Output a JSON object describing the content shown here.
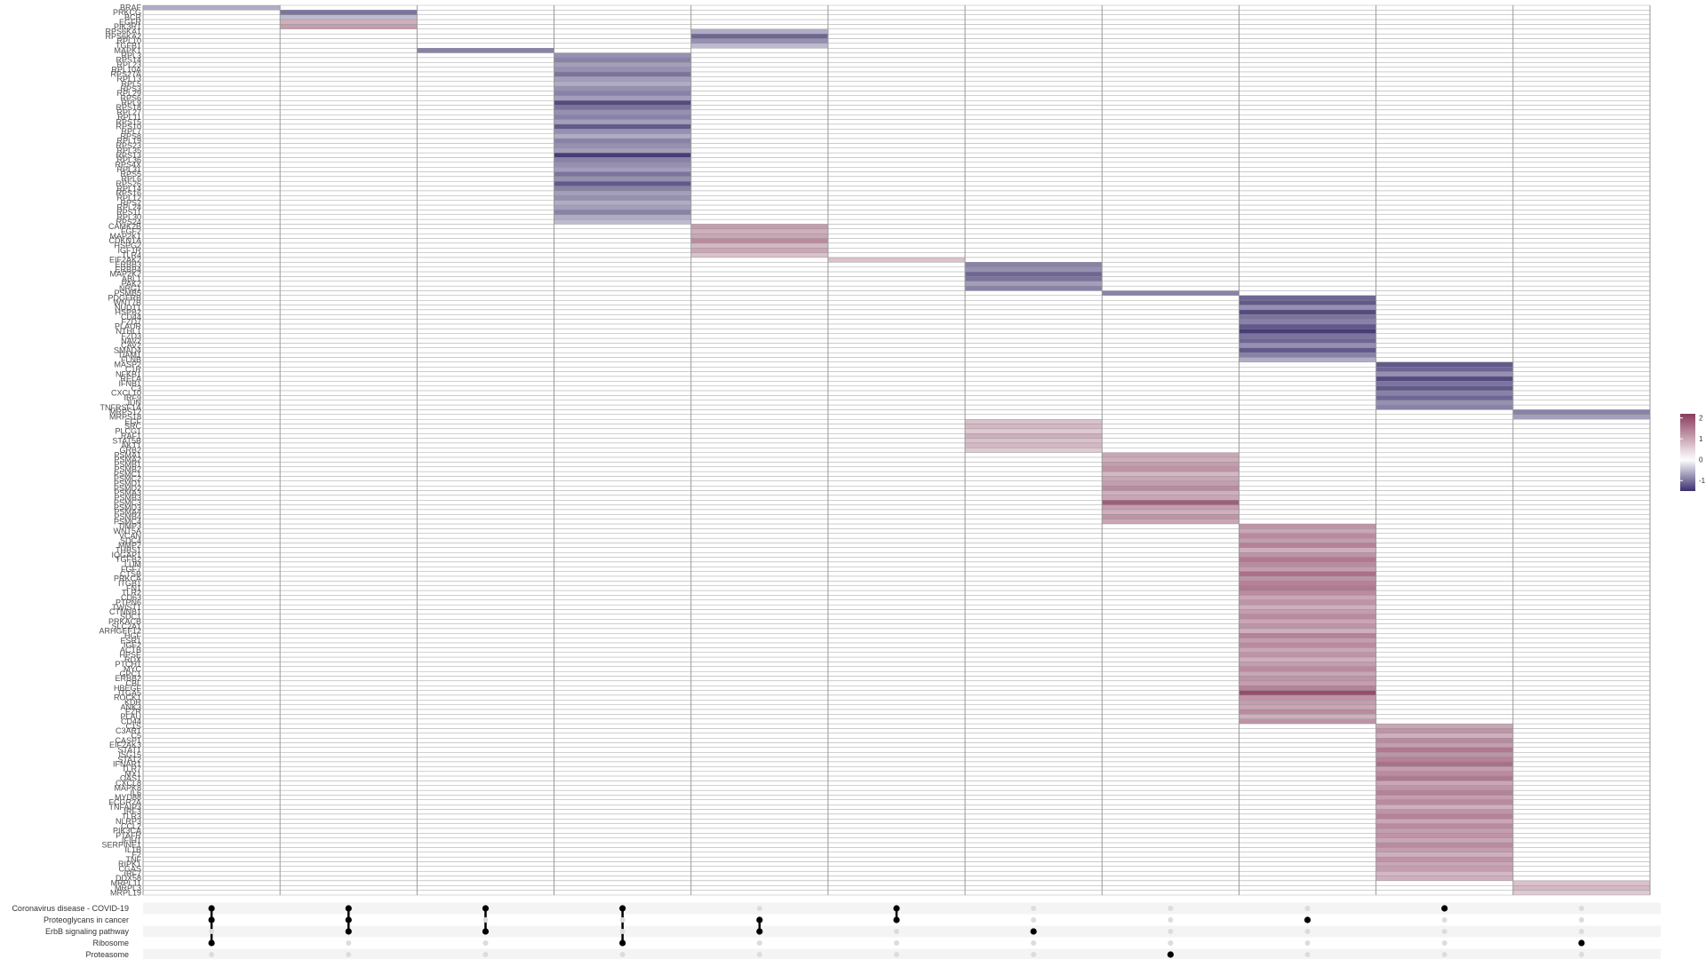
{
  "chart_data": {
    "type": "heatmap",
    "title": "",
    "xlabel": "",
    "ylabel": "",
    "value_range": [
      -1.5,
      2.2
    ],
    "colors": {
      "low": "#3b2f6e",
      "mid": "#ffffff",
      "high": "#8a3b5c",
      "grid": "#9a9a9a",
      "panel_bg": "#f4f4f4"
    },
    "legend": {
      "position": "right",
      "ticks": [
        2,
        1,
        0,
        -1
      ]
    },
    "columns": 11,
    "sets": [
      "Coronavirus disease - COVID-19",
      "Proteoglycans in cancer",
      "ErbB signaling pathway",
      "Ribosome",
      "Proteasome"
    ],
    "upset_matrix": [
      [
        0,
        1,
        3
      ],
      [
        0,
        1,
        2
      ],
      [
        0,
        2
      ],
      [
        0,
        3
      ],
      [
        1,
        2
      ],
      [
        0,
        1
      ],
      [
        2
      ],
      [
        4
      ],
      [
        1
      ],
      [
        0
      ],
      [
        3
      ]
    ],
    "blocks": [
      {
        "column": 0,
        "genes": [
          "BRAF"
        ],
        "values": [
          -0.6
        ]
      },
      {
        "column": 1,
        "genes": [
          "PRKCG",
          "BCR",
          "EGFR",
          "PIK3R1"
        ],
        "values": [
          -1.0,
          -0.5,
          0.9,
          1.1
        ]
      },
      {
        "column": 4,
        "genes": [
          "RPS6KA1",
          "RPS6KA2",
          "RPL10",
          "TGFB1"
        ],
        "values": [
          -0.6,
          -1.1,
          -0.8,
          -0.5
        ]
      },
      {
        "column": 2,
        "genes": [
          "MAPK1"
        ],
        "values": [
          -0.9
        ]
      },
      {
        "column": 3,
        "genes": [
          "RPL3",
          "RPS14",
          "RPL23",
          "RPL10A",
          "RPS27A",
          "RPL13",
          "RPL5",
          "RPS3",
          "RPL29",
          "RPS6",
          "RPL9",
          "RPS18",
          "RPL27",
          "RPL11",
          "RPS15",
          "RPS10",
          "RPL7",
          "RPS8",
          "RPL19",
          "RPS23",
          "RPL35",
          "RPS13",
          "RPL36",
          "RPS4X",
          "RPL31",
          "RPS5",
          "RPL6",
          "RPS26",
          "RPL14",
          "RPS16",
          "RPL12",
          "RPS2",
          "RPL24",
          "RPS11",
          "RPL30",
          "RPS24"
        ],
        "values": [
          -0.8,
          -0.9,
          -0.7,
          -0.8,
          -1.0,
          -0.7,
          -0.6,
          -0.8,
          -0.9,
          -0.7,
          -1.3,
          -1.0,
          -0.8,
          -0.9,
          -0.7,
          -1.2,
          -0.8,
          -0.6,
          -0.9,
          -0.8,
          -0.7,
          -1.4,
          -0.9,
          -0.8,
          -0.7,
          -1.0,
          -0.8,
          -1.2,
          -0.9,
          -0.7,
          -0.8,
          -0.6,
          -0.7,
          -0.9,
          -0.6,
          -0.5
        ]
      },
      {
        "column": 4,
        "genes": [
          "CAMK2B",
          "FGF2",
          "MAP2K1",
          "CDKN1A",
          "HSPG2",
          "IGF1R",
          "TLR4"
        ],
        "values": [
          1.1,
          0.9,
          1.0,
          1.3,
          0.8,
          1.0,
          0.7
        ]
      },
      {
        "column": 5,
        "genes": [
          "EIF2AK2"
        ],
        "values": [
          0.7
        ]
      },
      {
        "column": 6,
        "genes": [
          "ERBB3",
          "ERBB4",
          "MAP2K2",
          "ABL1",
          "PAK2",
          "NRG1"
        ],
        "values": [
          -0.9,
          -0.8,
          -1.1,
          -1.0,
          -0.7,
          -0.9
        ]
      },
      {
        "column": 7,
        "genes": [
          "PSMB5"
        ],
        "values": [
          -0.9
        ]
      },
      {
        "column": 8,
        "genes": [
          "PDGFRB",
          "WNT7B",
          "NUDT1",
          "HSPB2",
          "CD44",
          "FZD7",
          "PLAUR",
          "NTHL1",
          "FZD3",
          "NAV2",
          "CAV2",
          "SMAD4",
          "TIAM1",
          "FLNB"
        ],
        "values": [
          -1.1,
          -1.2,
          -0.8,
          -1.3,
          -1.0,
          -0.9,
          -1.2,
          -1.4,
          -1.0,
          -1.1,
          -0.8,
          -1.2,
          -0.9,
          -0.6
        ]
      },
      {
        "column": 9,
        "genes": [
          "MASP2",
          "C1R",
          "NFKB1",
          "RELA",
          "IFNB1",
          "C3",
          "CXCL10",
          "IRF9",
          "JUN",
          "TNFRSF1A"
        ],
        "values": [
          -1.2,
          -1.1,
          -0.8,
          -1.3,
          -1.0,
          -1.2,
          -0.9,
          -1.1,
          -0.8,
          -0.9
        ]
      },
      {
        "column": 10,
        "genes": [
          "MRPS12",
          "MRPS18"
        ],
        "values": [
          -0.9,
          -0.7
        ]
      },
      {
        "column": 6,
        "genes": [
          "EGF",
          "SRC",
          "PLCG1",
          "RAF1",
          "STAT5B",
          "AKT1",
          "GRB2"
        ],
        "values": [
          0.7,
          0.8,
          0.6,
          0.9,
          0.7,
          0.8,
          0.6
        ]
      },
      {
        "column": 7,
        "genes": [
          "PSMA1",
          "PSMA2",
          "PSMB1",
          "PSMB2",
          "PSMC1",
          "PSMC2",
          "PSMD1",
          "PSMD2",
          "PSMA3",
          "PSMB3",
          "PSMC3",
          "PSMD3",
          "PSMA4",
          "PSMB4",
          "PSMC4"
        ],
        "values": [
          1.0,
          0.9,
          1.1,
          1.2,
          0.8,
          1.0,
          1.1,
          1.3,
          0.9,
          1.0,
          1.8,
          1.1,
          0.9,
          1.2,
          1.0
        ]
      },
      {
        "column": 8,
        "genes": [
          "TIMP3",
          "WNT5A",
          "VCAN",
          "SDC4",
          "MMP2",
          "THBS1",
          "IQGAP1",
          "TGFB2",
          "LUM",
          "FGF7",
          "CTSB",
          "PRKCA",
          "ITGB1",
          "FN1",
          "TLR2",
          "CD63",
          "PTPN6",
          "TWIST1",
          "CTNNB1",
          "SDC1",
          "PRKACB",
          "SLC2A1",
          "ARHGEF12",
          "HGF",
          "ESR1",
          "IGF2",
          "ACTB",
          "HPSE",
          "RDX",
          "PTCH1",
          "MYC",
          "GPC1",
          "ERBB2",
          "CBL",
          "HBEGF",
          "ITGA5",
          "ROCK1",
          "KDR",
          "ANK3",
          "EZR",
          "PLAU",
          "CD44"
        ],
        "values": [
          1.2,
          1.0,
          1.3,
          1.1,
          1.4,
          0.9,
          1.2,
          1.5,
          1.3,
          1.1,
          1.6,
          1.2,
          1.4,
          1.5,
          1.3,
          1.0,
          1.2,
          0.9,
          1.1,
          1.3,
          1.0,
          1.2,
          0.9,
          1.4,
          1.1,
          1.3,
          1.0,
          1.2,
          0.9,
          1.1,
          1.3,
          1.0,
          1.2,
          1.1,
          1.4,
          2.0,
          1.2,
          1.1,
          1.0,
          1.3,
          0.9,
          1.2
        ]
      },
      {
        "column": 9,
        "genes": [
          "C1S",
          "C3AR1",
          "C5",
          "CASP1",
          "EIF2AK3",
          "STAT1",
          "ISG15",
          "STAT2",
          "IFNAR1",
          "TLR7",
          "MX1",
          "OAS1",
          "CXCL8",
          "MAPK8",
          "IL6",
          "MYD88",
          "FCGR2A",
          "TNFAIP3",
          "IRF3",
          "TLR3",
          "NLRP3",
          "CCL2",
          "PIK3CA",
          "PTAFR",
          "IFIH1",
          "SERPINE1",
          "IL1B",
          "F2",
          "TNF",
          "RIPK1",
          "CGAS",
          "IRF7",
          "DDX58"
        ],
        "values": [
          1.0,
          1.2,
          0.9,
          1.3,
          1.1,
          1.5,
          1.2,
          1.4,
          1.6,
          1.1,
          1.3,
          1.5,
          1.0,
          1.2,
          1.4,
          1.1,
          1.3,
          0.9,
          1.2,
          1.4,
          1.0,
          1.3,
          1.1,
          1.2,
          1.0,
          1.3,
          1.1,
          0.9,
          1.2,
          1.0,
          1.1,
          0.8,
          0.9
        ]
      },
      {
        "column": 10,
        "genes": [
          "MRPL11",
          "MRPL3",
          "MRPL19"
        ],
        "values": [
          0.7,
          0.8,
          0.6
        ]
      }
    ]
  }
}
